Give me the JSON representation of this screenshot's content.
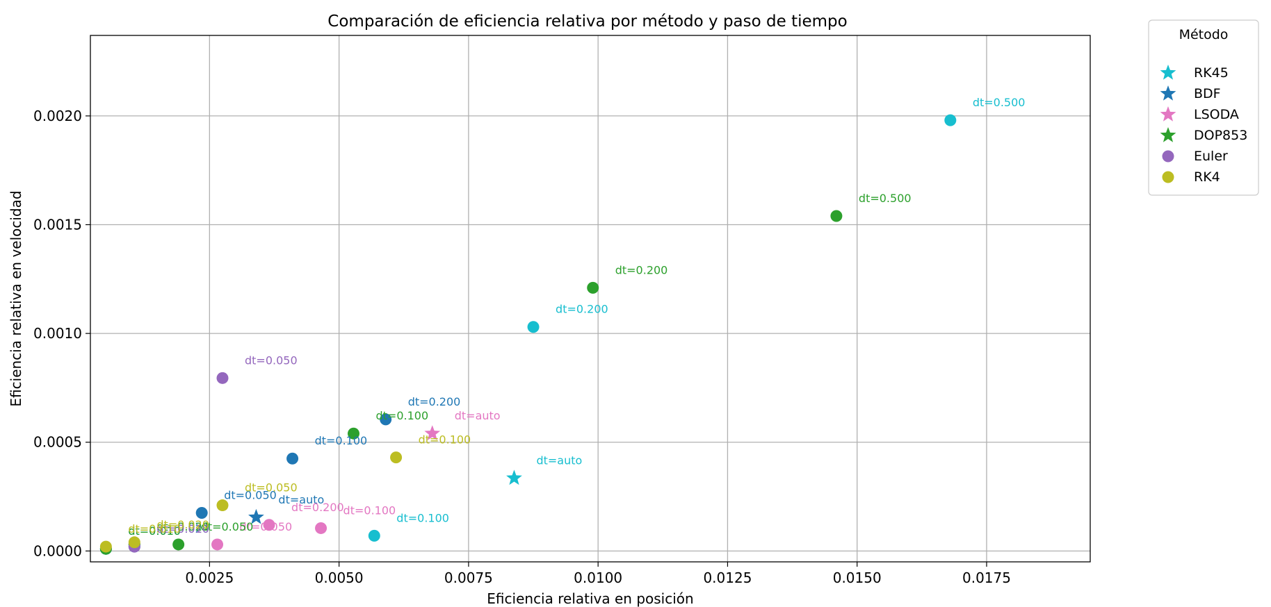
{
  "chart_data": {
    "type": "scatter",
    "title": "Comparación de eficiencia relativa por método y paso de tiempo",
    "xlabel": "Eficiencia relativa en posición",
    "ylabel": "Eficiencia relativa en velocidad",
    "xlim": [
      0.0002,
      0.0195
    ],
    "ylim": [
      -5e-05,
      0.00237
    ],
    "xticks": [
      0.0025,
      0.005,
      0.0075,
      0.01,
      0.0125,
      0.015,
      0.0175
    ],
    "xtick_labels": [
      "0.0025",
      "0.0050",
      "0.0075",
      "0.0100",
      "0.0125",
      "0.0150",
      "0.0175"
    ],
    "yticks": [
      0,
      0.0005,
      0.001,
      0.0015,
      0.002
    ],
    "ytick_labels": [
      "0.0000",
      "0.0005",
      "0.0010",
      "0.0015",
      "0.0020"
    ],
    "grid": true,
    "legend": {
      "title": "Método",
      "position": "outside-top-right",
      "entries": [
        {
          "name": "RK45",
          "marker": "star",
          "color": "#17becf"
        },
        {
          "name": "BDF",
          "marker": "star",
          "color": "#1f77b4"
        },
        {
          "name": "LSODA",
          "marker": "star",
          "color": "#e377c2"
        },
        {
          "name": "DOP853",
          "marker": "star",
          "color": "#2ca02c"
        },
        {
          "name": "Euler",
          "marker": "circle",
          "color": "#9467bd"
        },
        {
          "name": "RK4",
          "marker": "circle",
          "color": "#bcbd22"
        }
      ]
    },
    "series": [
      {
        "name": "RK45",
        "color": "#17becf",
        "points": [
          {
            "x": 0.0168,
            "y": 0.00198,
            "marker": "circle",
            "label": "dt=0.500"
          },
          {
            "x": 0.00875,
            "y": 0.00103,
            "marker": "circle",
            "label": "dt=0.200"
          },
          {
            "x": 0.00568,
            "y": 7e-05,
            "marker": "circle",
            "label": "dt=0.100"
          },
          {
            "x": 0.00838,
            "y": 0.000335,
            "marker": "star",
            "label": "dt=auto"
          },
          {
            "x": 0.00105,
            "y": 3e-05,
            "marker": "circle",
            "label": "dt=0.050"
          },
          {
            "x": 0.0005,
            "y": 1e-05,
            "marker": "circle",
            "label": "dt=0.010"
          }
        ]
      },
      {
        "name": "BDF",
        "color": "#1f77b4",
        "points": [
          {
            "x": 0.0059,
            "y": 0.000605,
            "marker": "circle",
            "label": "dt=0.200"
          },
          {
            "x": 0.0041,
            "y": 0.000425,
            "marker": "circle",
            "label": "dt=0.100"
          },
          {
            "x": 0.00235,
            "y": 0.000175,
            "marker": "circle",
            "label": "dt=0.050"
          },
          {
            "x": 0.0034,
            "y": 0.000155,
            "marker": "star",
            "label": "dt=auto"
          },
          {
            "x": 0.00105,
            "y": 2e-05,
            "marker": "circle",
            "label": "dt=0.020"
          },
          {
            "x": 0.0005,
            "y": 1e-05,
            "marker": "circle",
            "label": "dt=0.010"
          }
        ]
      },
      {
        "name": "LSODA",
        "color": "#e377c2",
        "points": [
          {
            "x": 0.0068,
            "y": 0.00054,
            "marker": "star",
            "label": "dt=auto"
          },
          {
            "x": 0.00465,
            "y": 0.000105,
            "marker": "circle",
            "label": "dt=0.100"
          },
          {
            "x": 0.00365,
            "y": 0.00012,
            "marker": "circle",
            "label": "dt=0.200"
          },
          {
            "x": 0.00265,
            "y": 3e-05,
            "marker": "circle",
            "label": "dt=0.050"
          },
          {
            "x": 0.00105,
            "y": 3e-05,
            "marker": "circle",
            "label": "dt=0.020"
          }
        ]
      },
      {
        "name": "DOP853",
        "color": "#2ca02c",
        "points": [
          {
            "x": 0.0146,
            "y": 0.00154,
            "marker": "circle",
            "label": "dt=0.500"
          },
          {
            "x": 0.0099,
            "y": 0.00121,
            "marker": "circle",
            "label": "dt=0.200"
          },
          {
            "x": 0.00528,
            "y": 0.00054,
            "marker": "circle",
            "label": "dt=0.100"
          },
          {
            "x": 0.0019,
            "y": 3e-05,
            "marker": "circle",
            "label": "dt=0.050"
          },
          {
            "x": 0.00105,
            "y": 3e-05,
            "marker": "circle",
            "label": "dt=0.020"
          },
          {
            "x": 0.0005,
            "y": 1e-05,
            "marker": "circle",
            "label": "dt=0.010"
          }
        ]
      },
      {
        "name": "Euler",
        "color": "#9467bd",
        "points": [
          {
            "x": 0.00275,
            "y": 0.000795,
            "marker": "circle",
            "label": "dt=0.050"
          },
          {
            "x": 0.00105,
            "y": 2e-05,
            "marker": "circle",
            "label": "dt=0.010"
          }
        ]
      },
      {
        "name": "RK4",
        "color": "#bcbd22",
        "points": [
          {
            "x": 0.0061,
            "y": 0.00043,
            "marker": "circle",
            "label": "dt=0.100"
          },
          {
            "x": 0.00275,
            "y": 0.00021,
            "marker": "circle",
            "label": "dt=0.050"
          },
          {
            "x": 0.00105,
            "y": 4e-05,
            "marker": "circle",
            "label": "dt=0.020"
          },
          {
            "x": 0.0005,
            "y": 2e-05,
            "marker": "circle",
            "label": "dt=0.010"
          }
        ]
      }
    ]
  }
}
